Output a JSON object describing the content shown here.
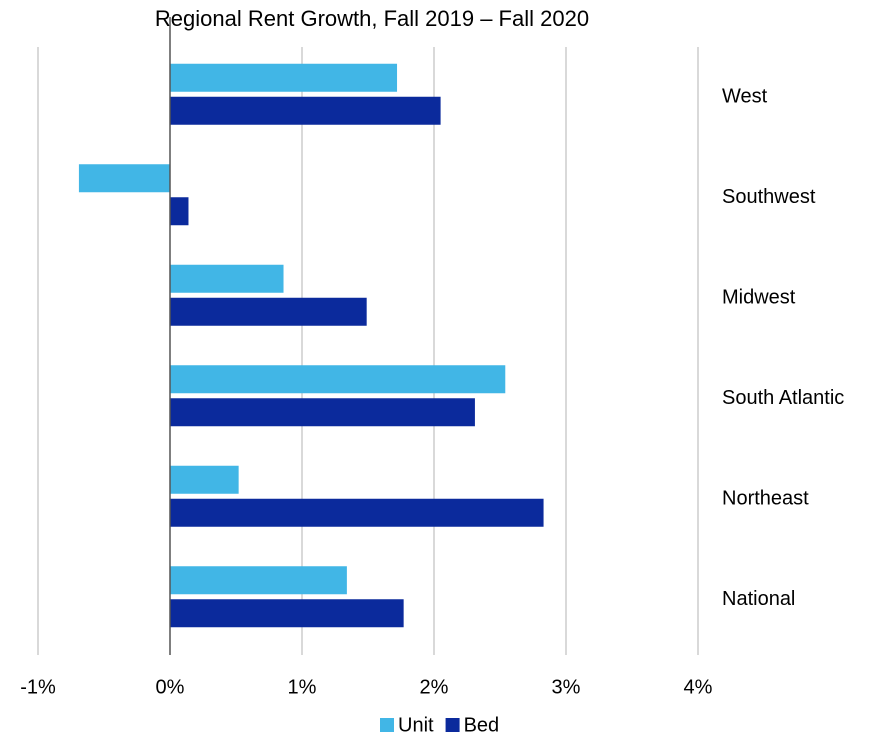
{
  "chart_data": {
    "type": "hbar",
    "title": "Regional Rent Growth, Fall 2019 – Fall 2020",
    "categories": [
      "West",
      "Southwest",
      "Midwest",
      "South Atlantic",
      "Northeast",
      "National"
    ],
    "series": [
      {
        "name": "Unit",
        "color": "#41b6e6",
        "values": [
          1.72,
          -0.69,
          0.86,
          2.54,
          0.52,
          1.34
        ]
      },
      {
        "name": "Bed",
        "color": "#0b2a9c",
        "values": [
          2.05,
          0.14,
          1.49,
          2.31,
          2.83,
          1.77
        ]
      }
    ],
    "xlim": [
      -1,
      4
    ],
    "xticks": [
      {
        "value": -1,
        "label": "-1%"
      },
      {
        "value": 0,
        "label": "0%"
      },
      {
        "value": 1,
        "label": "1%"
      },
      {
        "value": 2,
        "label": "2%"
      },
      {
        "value": 3,
        "label": "3%"
      },
      {
        "value": 4,
        "label": "4%"
      }
    ],
    "grid": true,
    "legend": "bottom"
  }
}
